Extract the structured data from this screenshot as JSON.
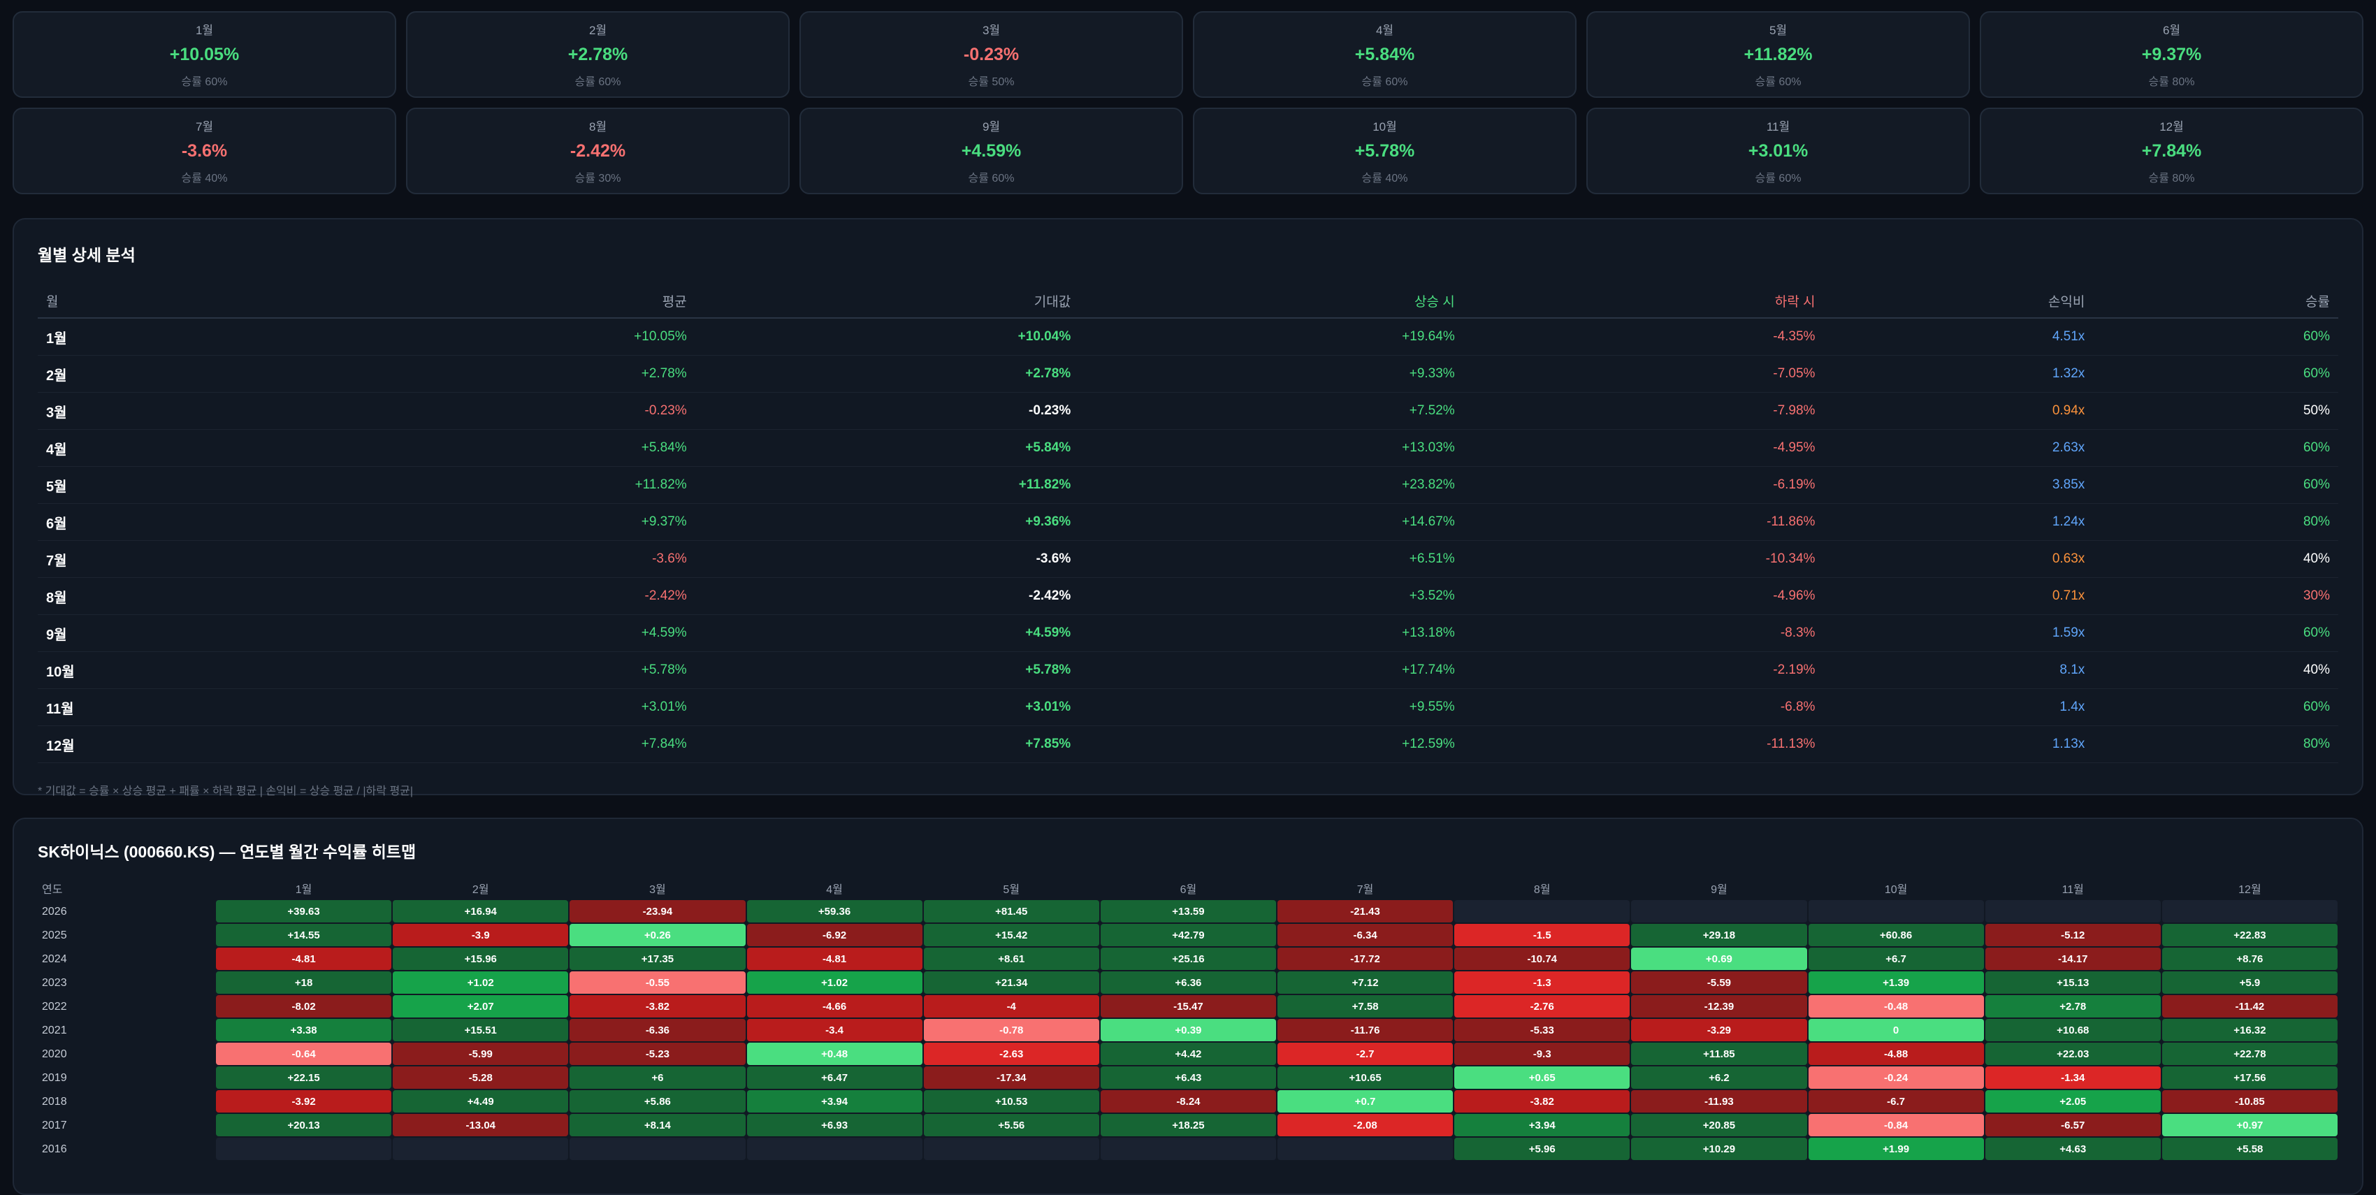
{
  "monthly_cards": [
    {
      "month": "1월",
      "ret": "+10.05%",
      "win": "승률 60%",
      "dir": "pos"
    },
    {
      "month": "2월",
      "ret": "+2.78%",
      "win": "승률 60%",
      "dir": "pos"
    },
    {
      "month": "3월",
      "ret": "-0.23%",
      "win": "승률 50%",
      "dir": "neg"
    },
    {
      "month": "4월",
      "ret": "+5.84%",
      "win": "승률 60%",
      "dir": "pos"
    },
    {
      "month": "5월",
      "ret": "+11.82%",
      "win": "승률 60%",
      "dir": "pos"
    },
    {
      "month": "6월",
      "ret": "+9.37%",
      "win": "승률 80%",
      "dir": "pos"
    },
    {
      "month": "7월",
      "ret": "-3.6%",
      "win": "승률 40%",
      "dir": "neg"
    },
    {
      "month": "8월",
      "ret": "-2.42%",
      "win": "승률 30%",
      "dir": "neg"
    },
    {
      "month": "9월",
      "ret": "+4.59%",
      "win": "승률 60%",
      "dir": "pos"
    },
    {
      "month": "10월",
      "ret": "+5.78%",
      "win": "승률 40%",
      "dir": "pos"
    },
    {
      "month": "11월",
      "ret": "+3.01%",
      "win": "승률 60%",
      "dir": "pos"
    },
    {
      "month": "12월",
      "ret": "+7.84%",
      "win": "승률 80%",
      "dir": "pos"
    }
  ],
  "detail": {
    "title": "월별 상세 분석",
    "headers": [
      "월",
      "평균",
      "기대값",
      "상승 시",
      "하락 시",
      "손익비",
      "승률"
    ],
    "rows": [
      [
        "1월",
        "+10.05%",
        "+10.04%",
        "+19.64%",
        "-4.35%",
        "4.51x",
        "60%"
      ],
      [
        "2월",
        "+2.78%",
        "+2.78%",
        "+9.33%",
        "-7.05%",
        "1.32x",
        "60%"
      ],
      [
        "3월",
        "-0.23%",
        "-0.23%",
        "+7.52%",
        "-7.98%",
        "0.94x",
        "50%"
      ],
      [
        "4월",
        "+5.84%",
        "+5.84%",
        "+13.03%",
        "-4.95%",
        "2.63x",
        "60%"
      ],
      [
        "5월",
        "+11.82%",
        "+11.82%",
        "+23.82%",
        "-6.19%",
        "3.85x",
        "60%"
      ],
      [
        "6월",
        "+9.37%",
        "+9.36%",
        "+14.67%",
        "-11.86%",
        "1.24x",
        "80%"
      ],
      [
        "7월",
        "-3.6%",
        "-3.6%",
        "+6.51%",
        "-10.34%",
        "0.63x",
        "40%"
      ],
      [
        "8월",
        "-2.42%",
        "-2.42%",
        "+3.52%",
        "-4.96%",
        "0.71x",
        "30%"
      ],
      [
        "9월",
        "+4.59%",
        "+4.59%",
        "+13.18%",
        "-8.3%",
        "1.59x",
        "60%"
      ],
      [
        "10월",
        "+5.78%",
        "+5.78%",
        "+17.74%",
        "-2.19%",
        "8.1x",
        "40%"
      ],
      [
        "11월",
        "+3.01%",
        "+3.01%",
        "+9.55%",
        "-6.8%",
        "1.4x",
        "60%"
      ],
      [
        "12월",
        "+7.84%",
        "+7.85%",
        "+12.59%",
        "-11.13%",
        "1.13x",
        "80%"
      ]
    ],
    "note": "* 기대값 = 승률 × 상승 평균 + 패률 × 하락 평균  |  손익비 = 상승 평균 / |하락 평균|"
  },
  "heatmap": {
    "title": "SK하이닉스 (000660.KS) — 연도별 월간 수익률 히트맵",
    "year_header": "연도",
    "months": [
      "1월",
      "2월",
      "3월",
      "4월",
      "5월",
      "6월",
      "7월",
      "8월",
      "9월",
      "10월",
      "11월",
      "12월"
    ],
    "rows": [
      {
        "year": "2026",
        "cells": [
          "+39.63",
          "+16.94",
          "-23.94",
          "+59.36",
          "+81.45",
          "+13.59",
          "-21.43",
          "",
          "",
          "",
          "",
          ""
        ]
      },
      {
        "year": "2025",
        "cells": [
          "+14.55",
          "-3.9",
          "+0.26",
          "-6.92",
          "+15.42",
          "+42.79",
          "-6.34",
          "-1.5",
          "+29.18",
          "+60.86",
          "-5.12",
          "+22.83"
        ]
      },
      {
        "year": "2024",
        "cells": [
          "-4.81",
          "+15.96",
          "+17.35",
          "-4.81",
          "+8.61",
          "+25.16",
          "-17.72",
          "-10.74",
          "+0.69",
          "+6.7",
          "-14.17",
          "+8.76"
        ]
      },
      {
        "year": "2023",
        "cells": [
          "+18",
          "+1.02",
          "-0.55",
          "+1.02",
          "+21.34",
          "+6.36",
          "+7.12",
          "-1.3",
          "-5.59",
          "+1.39",
          "+15.13",
          "+5.9"
        ]
      },
      {
        "year": "2022",
        "cells": [
          "-8.02",
          "+2.07",
          "-3.82",
          "-4.66",
          "-4",
          "-15.47",
          "+7.58",
          "-2.76",
          "-12.39",
          "-0.48",
          "+2.78",
          "-11.42"
        ]
      },
      {
        "year": "2021",
        "cells": [
          "+3.38",
          "+15.51",
          "-6.36",
          "-3.4",
          "-0.78",
          "+0.39",
          "-11.76",
          "-5.33",
          "-3.29",
          "0",
          "+10.68",
          "+16.32"
        ]
      },
      {
        "year": "2020",
        "cells": [
          "-0.64",
          "-5.99",
          "-5.23",
          "+0.48",
          "-2.63",
          "+4.42",
          "-2.7",
          "-9.3",
          "+11.85",
          "-4.88",
          "+22.03",
          "+22.78"
        ]
      },
      {
        "year": "2019",
        "cells": [
          "+22.15",
          "-5.28",
          "+6",
          "+6.47",
          "-17.34",
          "+6.43",
          "+10.65",
          "+0.65",
          "+6.2",
          "-0.24",
          "-1.34",
          "+17.56"
        ]
      },
      {
        "year": "2018",
        "cells": [
          "-3.92",
          "+4.49",
          "+5.86",
          "+3.94",
          "+10.53",
          "-8.24",
          "+0.7",
          "-3.82",
          "-11.93",
          "-6.7",
          "+2.05",
          "-10.85"
        ]
      },
      {
        "year": "2017",
        "cells": [
          "+20.13",
          "-13.04",
          "+8.14",
          "+6.93",
          "+5.56",
          "+18.25",
          "-2.08",
          "+3.94",
          "+20.85",
          "-0.84",
          "-6.57",
          "+0.97"
        ]
      },
      {
        "year": "2016",
        "cells": [
          "",
          "",
          "",
          "",
          "",
          "",
          "",
          "+5.96",
          "+10.29",
          "+1.99",
          "+4.63",
          "+5.58"
        ]
      }
    ]
  },
  "colors": {
    "positive": "#4ade80",
    "negative": "#f87171",
    "ratio_good": "#60a5fa",
    "ratio_bad": "#fb923c",
    "heat_empty": "#1a2230"
  }
}
